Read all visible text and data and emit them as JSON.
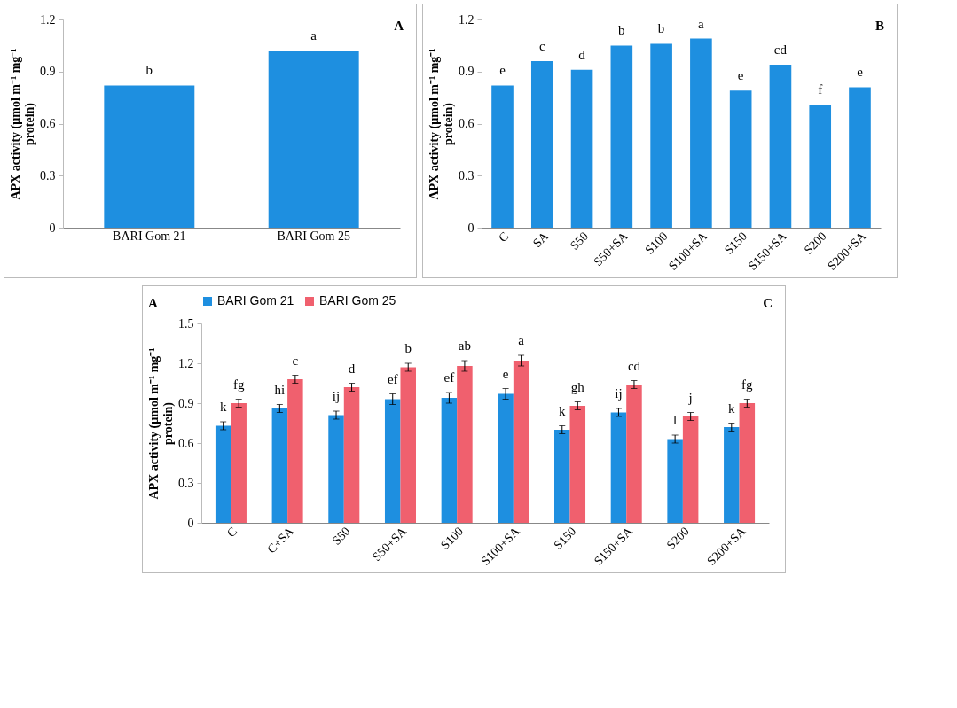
{
  "chart_data": [
    {
      "type": "bar",
      "ylabel": "APX activity (µmol m⁻¹ mg⁻¹ protein)",
      "categories": [
        "BARI Gom 21",
        "BARI Gom 25"
      ],
      "values": [
        0.82,
        1.02
      ],
      "color": "#1e8fe0",
      "value_labels": [
        "b",
        "a"
      ],
      "ylim": [
        0,
        1.2
      ],
      "yticks": [
        0,
        0.3,
        0.6,
        0.9,
        1.2
      ],
      "annotations": [
        "A"
      ]
    },
    {
      "type": "bar",
      "ylabel": "APX activity (µmol m⁻¹ mg⁻¹ protein)",
      "categories": [
        "C",
        "SA",
        "S50",
        "S50+SA",
        "S100",
        "S100+SA",
        "S150",
        "S150+SA",
        "S200",
        "S200+SA"
      ],
      "values": [
        0.82,
        0.96,
        0.91,
        1.05,
        1.06,
        1.09,
        0.79,
        0.94,
        0.71,
        0.81
      ],
      "color": "#1e8fe0",
      "value_labels": [
        "e",
        "c",
        "d",
        "b",
        "b",
        "a",
        "e",
        "cd",
        "f",
        "e"
      ],
      "ylim": [
        0,
        1.2
      ],
      "yticks": [
        0,
        0.3,
        0.6,
        0.9,
        1.2
      ],
      "annotations": [
        "B"
      ]
    },
    {
      "type": "bar",
      "ylabel": "APX activity (µmol m⁻¹ mg⁻¹ protein)",
      "categories": [
        "C",
        "C+SA",
        "S50",
        "S50+SA",
        "S100",
        "S100+SA",
        "S150",
        "S150+SA",
        "S200",
        "S200+SA"
      ],
      "legend": "top",
      "ylim": [
        0,
        1.5
      ],
      "yticks": [
        0,
        0.3,
        0.6,
        0.9,
        1.2,
        1.5
      ],
      "annotations": [
        "A",
        "C"
      ],
      "series": [
        {
          "name": "BARI Gom 21",
          "color": "#1e8fe0",
          "values": [
            0.73,
            0.86,
            0.81,
            0.93,
            0.94,
            0.97,
            0.7,
            0.83,
            0.63,
            0.72
          ],
          "errors": [
            0.03,
            0.03,
            0.03,
            0.04,
            0.04,
            0.04,
            0.03,
            0.03,
            0.03,
            0.03
          ],
          "value_labels": [
            "k",
            "hi",
            "ij",
            "ef",
            "ef",
            "e",
            "k",
            "ij",
            "l",
            "k"
          ]
        },
        {
          "name": "BARI Gom 25",
          "color": "#f0606e",
          "values": [
            0.9,
            1.08,
            1.02,
            1.17,
            1.18,
            1.22,
            0.88,
            1.04,
            0.8,
            0.9
          ],
          "errors": [
            0.03,
            0.03,
            0.03,
            0.03,
            0.04,
            0.04,
            0.03,
            0.03,
            0.03,
            0.03
          ],
          "value_labels": [
            "fg",
            "c",
            "d",
            "b",
            "ab",
            "a",
            "gh",
            "cd",
            "j",
            "fg"
          ]
        }
      ]
    }
  ]
}
